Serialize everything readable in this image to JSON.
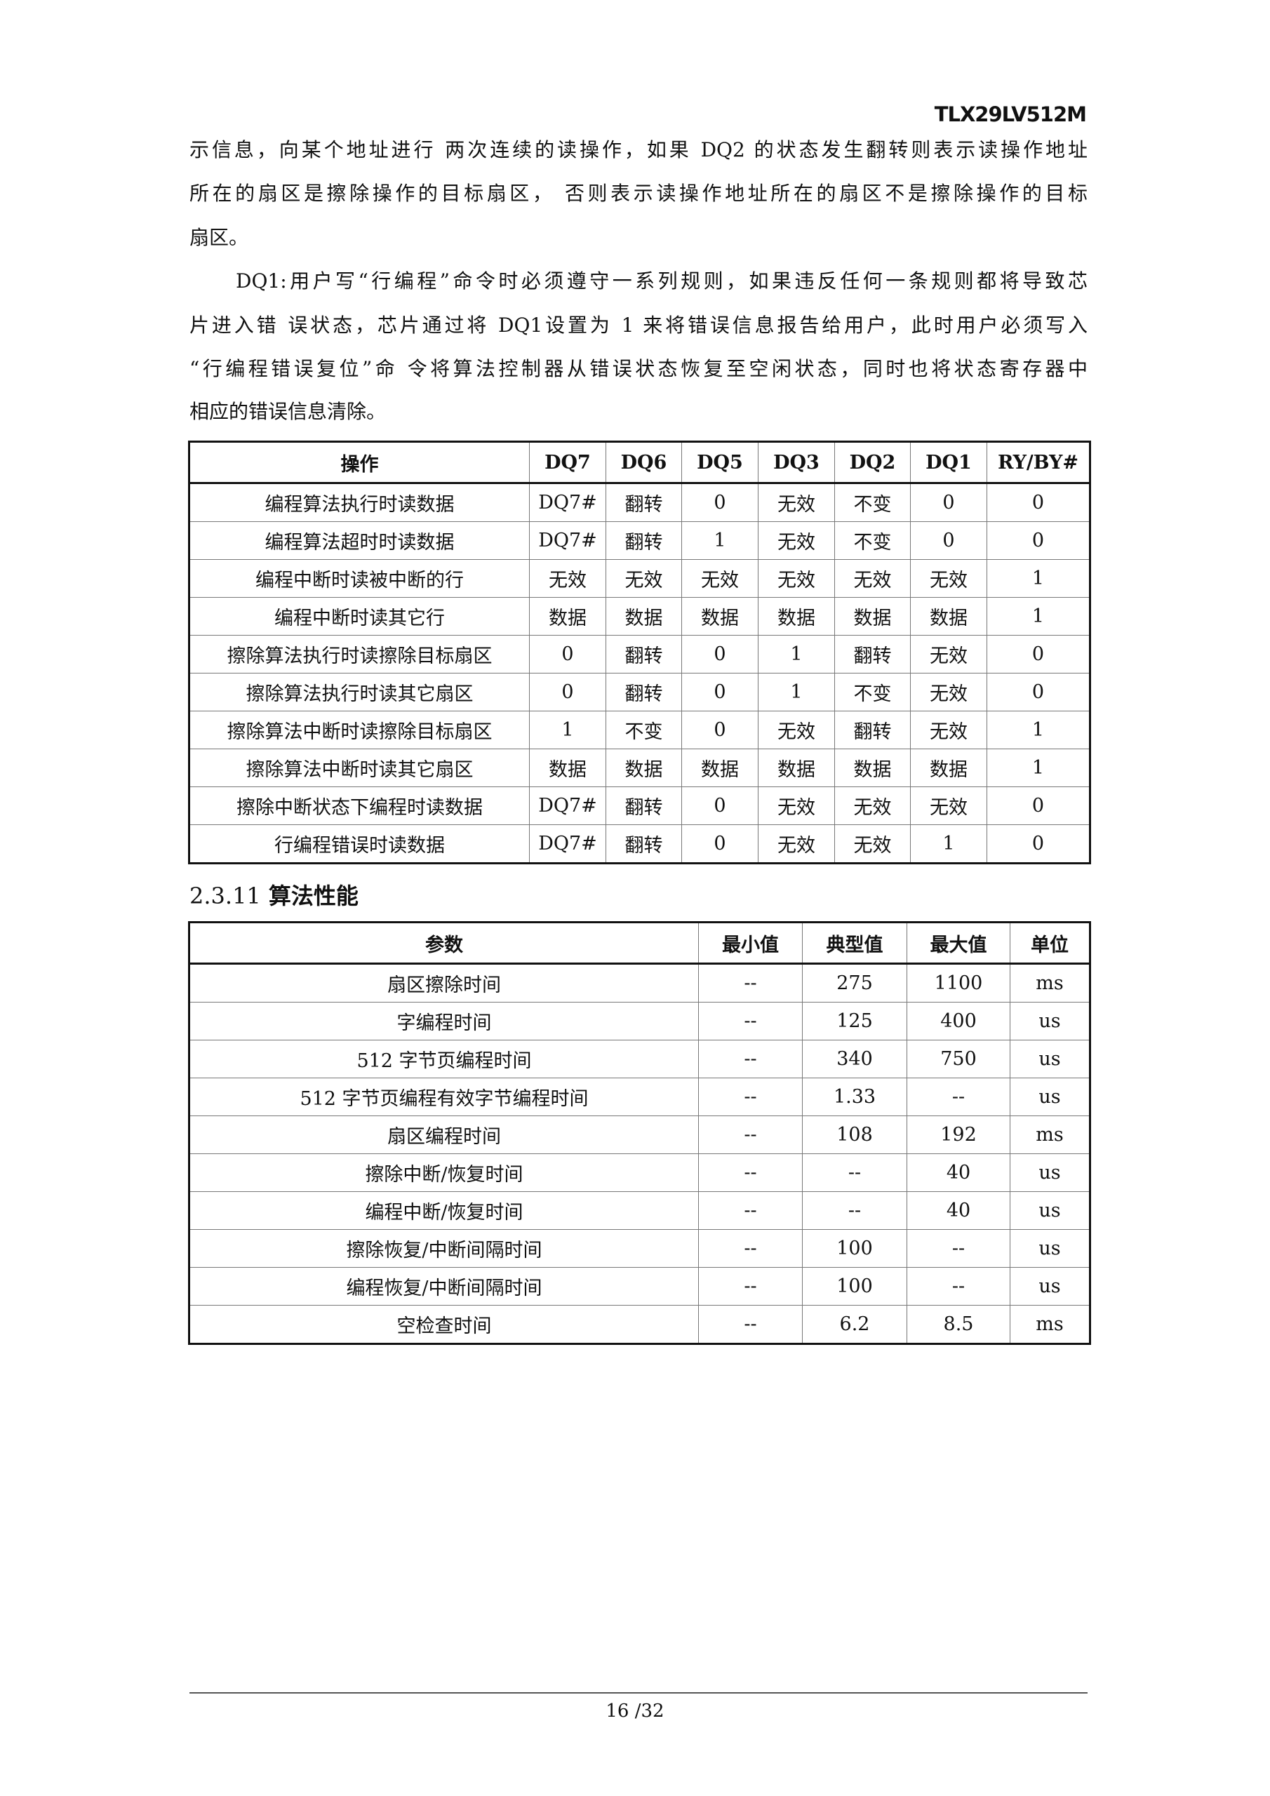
{
  "header": {
    "doc_id": "TLX29LV512M"
  },
  "paragraphs": [
    {
      "lines": [
        "示信息，向某个地址进行 两次连续的读操作，如果 DQ2 的状态发生翻转则表示读操作地址",
        "所在的扇区是擦除操作的目标扇区， 否则表示读操作地址所在的扇区不是擦除操作的目标",
        "扇区。"
      ]
    },
    {
      "lines": [
        "DQ1:用户写“行编程”命令时必须遵守一系列规则，如果违反任何一条规则都将导致芯",
        "片进入错 误状态，芯片通过将 DQ1设置为 1 来将错误信息报告给用户，此时用户必须写入",
        "“行编程错误复位”命 令将算法控制器从错误状态恢复至空闲状态，同时也将状态寄存器中",
        "相应的错误信息清除。"
      ]
    }
  ],
  "status_table": {
    "headers": [
      "操作",
      "DQ7",
      "DQ6",
      "DQ5",
      "DQ3",
      "DQ2",
      "DQ1",
      "RY/BY#"
    ],
    "rows": [
      [
        "编程算法执行时读数据",
        "DQ7#",
        "翻转",
        "0",
        "无效",
        "不变",
        "0",
        "0"
      ],
      [
        "编程算法超时时读数据",
        "DQ7#",
        "翻转",
        "1",
        "无效",
        "不变",
        "0",
        "0"
      ],
      [
        "编程中断时读被中断的行",
        "无效",
        "无效",
        "无效",
        "无效",
        "无效",
        "无效",
        "1"
      ],
      [
        "编程中断时读其它行",
        "数据",
        "数据",
        "数据",
        "数据",
        "数据",
        "数据",
        "1"
      ],
      [
        "擦除算法执行时读擦除目标扇区",
        "0",
        "翻转",
        "0",
        "1",
        "翻转",
        "无效",
        "0"
      ],
      [
        "擦除算法执行时读其它扇区",
        "0",
        "翻转",
        "0",
        "1",
        "不变",
        "无效",
        "0"
      ],
      [
        "擦除算法中断时读擦除目标扇区",
        "1",
        "不变",
        "0",
        "无效",
        "翻转",
        "无效",
        "1"
      ],
      [
        "擦除算法中断时读其它扇区",
        "数据",
        "数据",
        "数据",
        "数据",
        "数据",
        "数据",
        "1"
      ],
      [
        "擦除中断状态下编程时读数据",
        "DQ7#",
        "翻转",
        "0",
        "无效",
        "无效",
        "无效",
        "0"
      ],
      [
        "行编程错误时读数据",
        "DQ7#",
        "翻转",
        "0",
        "无效",
        "无效",
        "1",
        "0"
      ]
    ]
  },
  "section": {
    "number": "2.3.11",
    "title": "算法性能"
  },
  "perf_table": {
    "headers": [
      "参数",
      "最小值",
      "典型值",
      "最大值",
      "单位"
    ],
    "rows": [
      [
        "扇区擦除时间",
        "--",
        "275",
        "1100",
        "ms"
      ],
      [
        "字编程时间",
        "--",
        "125",
        "400",
        "us"
      ],
      [
        "512 字节页编程时间",
        "--",
        "340",
        "750",
        "us"
      ],
      [
        "512 字节页编程有效字节编程时间",
        "--",
        "1.33",
        "--",
        "us"
      ],
      [
        "扇区编程时间",
        "--",
        "108",
        "192",
        "ms"
      ],
      [
        "擦除中断/恢复时间",
        "--",
        "--",
        "40",
        "us"
      ],
      [
        "编程中断/恢复时间",
        "--",
        "--",
        "40",
        "us"
      ],
      [
        "擦除恢复/中断间隔时间",
        "--",
        "100",
        "--",
        "us"
      ],
      [
        "编程恢复/中断间隔时间",
        "--",
        "100",
        "--",
        "us"
      ],
      [
        "空检查时间",
        "--",
        "6.2",
        "8.5",
        "ms"
      ]
    ]
  },
  "footer": {
    "page": "16 /32"
  }
}
